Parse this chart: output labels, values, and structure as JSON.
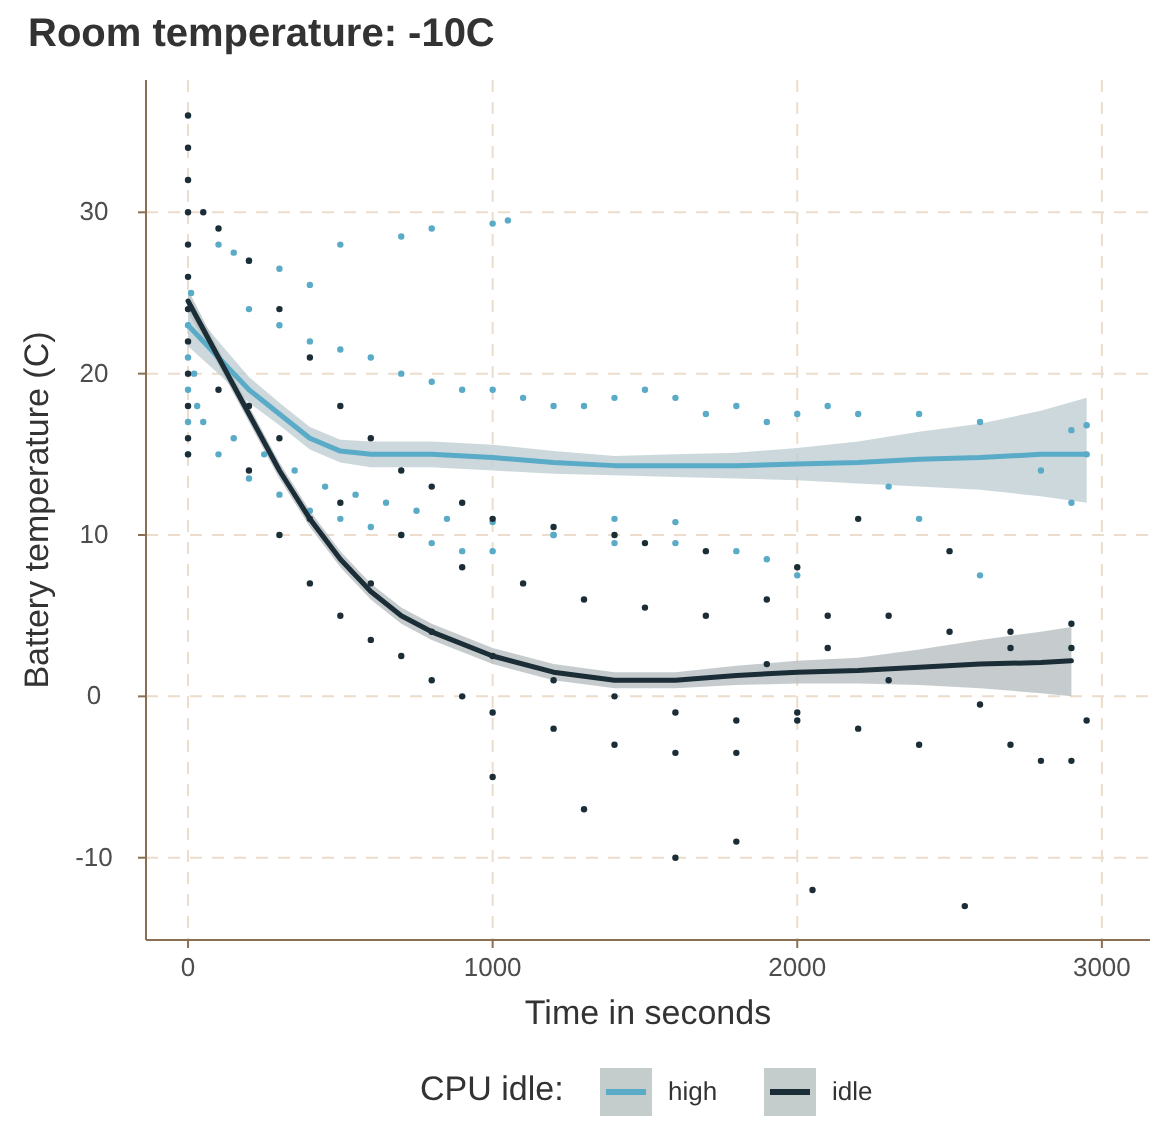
{
  "chart_data": {
    "type": "scatter",
    "title": "Room temperature: -10C",
    "xlabel": "Time in seconds",
    "ylabel": "Battery temperature (C)",
    "legend_title": "CPU idle:",
    "legend": "bottom",
    "grid": true,
    "xlim": [
      -138,
      3158
    ],
    "ylim": [
      -15.1,
      38.2
    ],
    "xticks": [
      0,
      1000,
      2000,
      3000
    ],
    "yticks": [
      -10,
      0,
      10,
      20,
      30
    ],
    "series": [
      {
        "type": "scatter",
        "color": "#5aabc7",
        "x": [
          0,
          0,
          0,
          0,
          0,
          10,
          20,
          30,
          100,
          150,
          200,
          300,
          400,
          500,
          700,
          800,
          1000,
          1050,
          200,
          300,
          400,
          500,
          600,
          700,
          800,
          900,
          1000,
          1100,
          1200,
          1300,
          1400,
          1500,
          1600,
          1700,
          1800,
          1900,
          2000,
          2100,
          2200,
          2400,
          2600,
          2900,
          2950,
          2800,
          2900,
          2300,
          2950,
          50,
          150,
          250,
          350,
          450,
          550,
          650,
          750,
          850,
          1000,
          1200,
          1400,
          1600,
          1800,
          1900,
          2000,
          2400,
          2600,
          100,
          200,
          300,
          400,
          500,
          600,
          700,
          800,
          900,
          1000,
          1200,
          1400,
          1600
        ],
        "values": [
          15,
          17,
          19,
          21,
          23,
          25,
          20,
          18,
          28,
          27.5,
          27,
          26.5,
          25.5,
          28,
          28.5,
          29,
          29.3,
          29.5,
          24,
          23,
          22,
          21.5,
          21,
          20,
          19.5,
          19,
          19,
          18.5,
          18,
          18,
          18.5,
          19,
          18.5,
          17.5,
          18,
          17,
          17.5,
          18,
          17.5,
          17.5,
          17,
          16.5,
          16.8,
          14,
          12,
          13,
          15,
          17,
          16,
          15,
          14,
          13,
          12.5,
          12,
          11.5,
          11,
          10.8,
          10,
          9.5,
          9.5,
          9,
          8.5,
          7.5,
          11,
          7.5,
          15,
          13.5,
          12.5,
          11.5,
          11,
          10.5,
          10,
          9.5,
          9,
          9,
          10,
          11,
          10.8
        ]
      },
      {
        "type": "scatter",
        "color": "#1b2d36",
        "x": [
          0,
          0,
          0,
          0,
          0,
          0,
          0,
          0,
          0,
          0,
          0,
          0,
          50,
          100,
          200,
          300,
          400,
          500,
          600,
          700,
          800,
          900,
          1000,
          1200,
          1400,
          1500,
          1700,
          2000,
          100,
          200,
          300,
          400,
          500,
          600,
          700,
          800,
          900,
          1000,
          1200,
          1400,
          1600,
          1800,
          200,
          400,
          600,
          800,
          1000,
          1200,
          1400,
          1600,
          1800,
          2000,
          300,
          500,
          700,
          900,
          1100,
          1300,
          1500,
          1700,
          1900,
          2100,
          2300,
          2500,
          2700,
          2900,
          1000,
          1300,
          1600,
          1800,
          2050,
          2550,
          2200,
          2500,
          2000,
          2200,
          2400,
          2700,
          2800,
          2900,
          2950,
          2600,
          2300,
          2100,
          1900,
          2700,
          2900
        ],
        "values": [
          36,
          34,
          32,
          30,
          28,
          26,
          24,
          22,
          20,
          18,
          16,
          15,
          30,
          29,
          27,
          24,
          21,
          18,
          16,
          14,
          13,
          12,
          11,
          10.5,
          10,
          9.5,
          9,
          8,
          19,
          14,
          10,
          7,
          5,
          3.5,
          2.5,
          1,
          0,
          -1,
          -2,
          -3,
          -3.5,
          -3.5,
          18,
          11,
          7,
          4,
          2.5,
          1,
          0,
          -1,
          -1.5,
          -1,
          16,
          12,
          10,
          8,
          7,
          6,
          5.5,
          5,
          6,
          5,
          5,
          4,
          4,
          4.5,
          -5,
          -7,
          -10,
          -9,
          -12,
          -13,
          11,
          9,
          -1.5,
          -2,
          -3,
          -3,
          -4,
          -4,
          -1.5,
          -0.5,
          1,
          3,
          2,
          3,
          3
        ]
      },
      {
        "type": "line",
        "name": "high",
        "color": "#5aabc7",
        "x": [
          0,
          100,
          200,
          300,
          400,
          500,
          600,
          800,
          1000,
          1200,
          1400,
          1600,
          1800,
          2000,
          2200,
          2400,
          2600,
          2800,
          2950
        ],
        "values": [
          23,
          21,
          19,
          17.5,
          16,
          15.2,
          15,
          15,
          14.8,
          14.5,
          14.3,
          14.3,
          14.3,
          14.4,
          14.5,
          14.7,
          14.8,
          15,
          15
        ],
        "lower": [
          21.7,
          20,
          18.2,
          16.8,
          15.3,
          14.5,
          14.2,
          14.2,
          14,
          13.8,
          13.7,
          13.6,
          13.5,
          13.4,
          13.2,
          13,
          12.8,
          12.4,
          12
        ],
        "upper": [
          24.3,
          22,
          19.8,
          18.2,
          16.7,
          15.9,
          15.8,
          15.8,
          15.6,
          15.2,
          14.9,
          15,
          15.1,
          15.4,
          15.8,
          16.4,
          16.9,
          17.7,
          18.5
        ]
      },
      {
        "type": "line",
        "name": "idle",
        "color": "#1b2d36",
        "x": [
          0,
          100,
          200,
          300,
          400,
          500,
          600,
          700,
          800,
          1000,
          1200,
          1400,
          1600,
          1800,
          2000,
          2200,
          2400,
          2600,
          2800,
          2900
        ],
        "values": [
          24.5,
          21,
          17.5,
          14,
          11,
          8.5,
          6.5,
          5,
          4,
          2.5,
          1.5,
          1,
          1,
          1.3,
          1.5,
          1.6,
          1.8,
          2,
          2.1,
          2.2
        ],
        "lower": [
          23.8,
          20.5,
          17,
          13.5,
          10.5,
          8,
          6,
          4.5,
          3.5,
          2,
          1,
          0.5,
          0.5,
          0.7,
          0.8,
          0.8,
          0.7,
          0.5,
          0.2,
          0
        ],
        "upper": [
          25.2,
          21.5,
          18,
          14.5,
          11.5,
          9,
          7,
          5.5,
          4.5,
          3,
          2,
          1.5,
          1.5,
          1.9,
          2.2,
          2.4,
          2.9,
          3.5,
          4,
          4.3
        ]
      }
    ]
  }
}
